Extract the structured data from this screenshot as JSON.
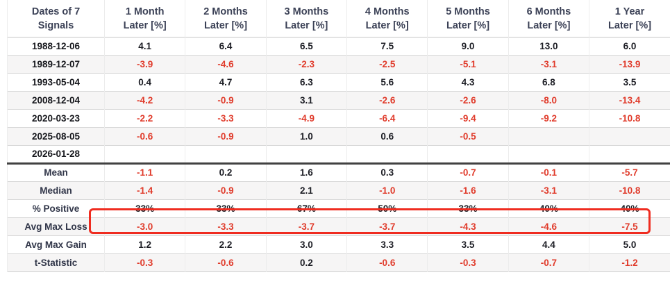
{
  "chart_data": {
    "type": "table",
    "columns": [
      "Dates of 7 Signals",
      "1 Month Later [%]",
      "2 Months Later [%]",
      "3 Months Later [%]",
      "4 Months Later [%]",
      "5 Months Later [%]",
      "6 Months Later [%]",
      "1 Year Later [%]"
    ],
    "header_lines": {
      "c0": [
        "Dates of 7",
        "Signals"
      ],
      "c1": [
        "1 Month",
        "Later [%]"
      ],
      "c2": [
        "2 Months",
        "Later [%]"
      ],
      "c3": [
        "3 Months",
        "Later [%]"
      ],
      "c4": [
        "4 Months",
        "Later [%]"
      ],
      "c5": [
        "5 Months",
        "Later [%]"
      ],
      "c6": [
        "6 Months",
        "Later [%]"
      ],
      "c7": [
        "1 Year",
        "Later [%]"
      ]
    },
    "signal_rows": [
      {
        "date": "1988-12-06",
        "values": [
          "4.1",
          "6.4",
          "6.5",
          "7.5",
          "9.0",
          "13.0",
          "6.0"
        ]
      },
      {
        "date": "1989-12-07",
        "values": [
          "-3.9",
          "-4.6",
          "-2.3",
          "-2.5",
          "-5.1",
          "-3.1",
          "-13.9"
        ]
      },
      {
        "date": "1993-05-04",
        "values": [
          "0.4",
          "4.7",
          "6.3",
          "5.6",
          "4.3",
          "6.8",
          "3.5"
        ]
      },
      {
        "date": "2008-12-04",
        "values": [
          "-4.2",
          "-0.9",
          "3.1",
          "-2.6",
          "-2.6",
          "-8.0",
          "-13.4"
        ]
      },
      {
        "date": "2020-03-23",
        "values": [
          "-2.2",
          "-3.3",
          "-4.9",
          "-6.4",
          "-9.4",
          "-9.2",
          "-10.8"
        ]
      },
      {
        "date": "2025-08-05",
        "values": [
          "-0.6",
          "-0.9",
          "1.0",
          "0.6",
          "-0.5",
          "",
          ""
        ]
      },
      {
        "date": "2026-01-28",
        "values": [
          "",
          "",
          "",
          "",
          "",
          "",
          ""
        ]
      }
    ],
    "summary_rows": [
      {
        "label": "Mean",
        "values": [
          "-1.1",
          "0.2",
          "1.6",
          "0.3",
          "-0.7",
          "-0.1",
          "-5.7"
        ]
      },
      {
        "label": "Median",
        "values": [
          "-1.4",
          "-0.9",
          "2.1",
          "-1.0",
          "-1.6",
          "-3.1",
          "-10.8"
        ]
      },
      {
        "label": "% Positive",
        "values": [
          "33%",
          "33%",
          "67%",
          "50%",
          "33%",
          "40%",
          "40%"
        ]
      },
      {
        "label": "Avg Max Loss",
        "values": [
          "-3.0",
          "-3.3",
          "-3.7",
          "-3.7",
          "-4.3",
          "-4.6",
          "-7.5"
        ]
      },
      {
        "label": "Avg Max Gain",
        "values": [
          "1.2",
          "2.2",
          "3.0",
          "3.3",
          "3.5",
          "4.4",
          "5.0"
        ]
      },
      {
        "label": "t-Statistic",
        "values": [
          "-0.3",
          "-0.6",
          "0.2",
          "-0.6",
          "-0.3",
          "-0.7",
          "-1.2"
        ]
      }
    ],
    "highlighted_row": "% Positive"
  },
  "colors": {
    "negative_text": "#e03b2b",
    "positive_text": "#1c1d24",
    "header_text": "#3b4156",
    "stripe_bg": "#f6f5f5",
    "highlight_border": "#ef2c20",
    "separator": "#414141"
  }
}
